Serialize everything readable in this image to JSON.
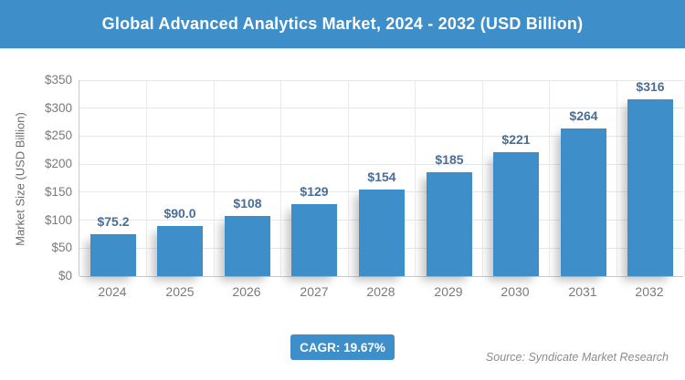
{
  "header": {
    "title": "Global Advanced Analytics Market, 2024 - 2032 (USD Billion)"
  },
  "chart_data": {
    "type": "bar",
    "title": "Global Advanced Analytics Market, 2024 - 2032 (USD Billion)",
    "categories": [
      "2024",
      "2025",
      "2026",
      "2027",
      "2028",
      "2029",
      "2030",
      "2031",
      "2032"
    ],
    "values": [
      75.2,
      90.0,
      108,
      129,
      154,
      185,
      221,
      264,
      316
    ],
    "bar_labels": [
      "$75.2",
      "$90.0",
      "$108",
      "$129",
      "$154",
      "$185",
      "$221",
      "$264",
      "$316"
    ],
    "xlabel": "",
    "ylabel": "Market Size (USD Billion)",
    "ylim": [
      0,
      350
    ],
    "ytick_step": 50,
    "ytick_labels": [
      "$0",
      "$50",
      "$100",
      "$150",
      "$200",
      "$250",
      "$300",
      "$350"
    ],
    "grid": true,
    "legend_position": "none",
    "bar_color": "#3E8EC9"
  },
  "footer": {
    "cagr_label": "CAGR: 19.67%",
    "source": "Source: Syndicate Market Research"
  },
  "colors": {
    "accent_blue": "#3E8EC9",
    "bar_value_label": "#4a6d96",
    "axis_text": "#7a7a7a",
    "gridline": "#e3e7ea",
    "source_text": "#8b8b8b",
    "title_text": "#ffffff"
  }
}
